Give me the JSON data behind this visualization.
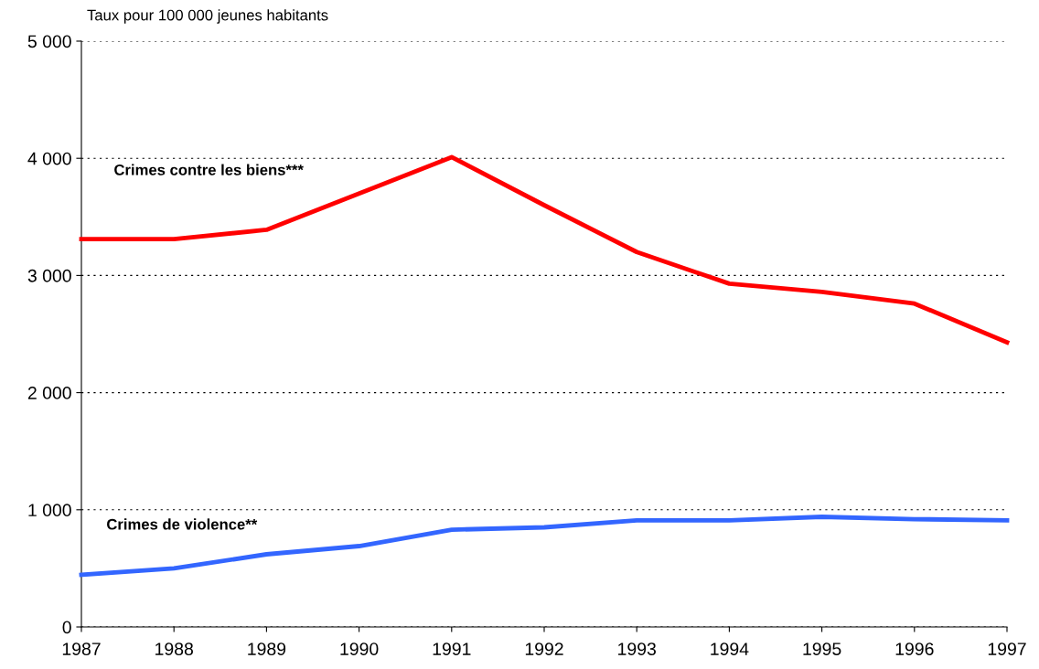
{
  "chart_data": {
    "type": "line",
    "ylabel": "Taux pour 100 000 jeunes habitants",
    "x": [
      1987,
      1988,
      1989,
      1990,
      1991,
      1992,
      1993,
      1994,
      1995,
      1996,
      1997
    ],
    "series": [
      {
        "name": "Crimes contre les biens***",
        "color": "#ff0000",
        "values": [
          3310,
          3310,
          3390,
          3700,
          4010,
          3600,
          3200,
          2930,
          2860,
          2760,
          2430
        ]
      },
      {
        "name": "Crimes de violence**",
        "color": "#3366ff",
        "values": [
          445,
          500,
          620,
          690,
          830,
          850,
          910,
          910,
          940,
          920,
          910
        ]
      }
    ],
    "xlim": [
      1987,
      1997
    ],
    "xticks": [
      1987,
      1988,
      1989,
      1990,
      1991,
      1992,
      1993,
      1994,
      1995,
      1996,
      1997
    ],
    "ylim": [
      0,
      5000
    ],
    "yticks": [
      0,
      {
        "value": 1000,
        "label": "1 000"
      },
      {
        "value": 2000,
        "label": "2 000"
      },
      {
        "value": 3000,
        "label": "3 000"
      },
      {
        "value": 4000,
        "label": "4 000"
      },
      {
        "value": 5000,
        "label": "5 000"
      }
    ],
    "grid": "y",
    "legend": false,
    "marker": "none",
    "line_style": "solid"
  }
}
